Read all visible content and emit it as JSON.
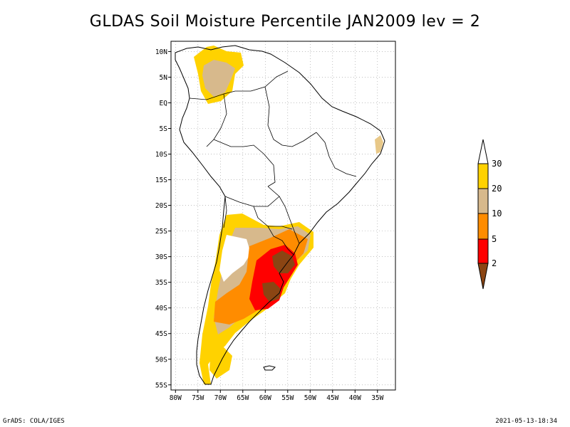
{
  "title": "GLDAS Soil Moisture Percentile JAN2009 lev = 2",
  "map": {
    "region": "South America",
    "lon_range": [
      -80,
      -30
    ],
    "lat_range": [
      -55,
      10
    ],
    "lon_ticks": [
      "80W",
      "75W",
      "70W",
      "65W",
      "60W",
      "55W",
      "50W",
      "45W",
      "40W",
      "35W"
    ],
    "lat_ticks": [
      "10N",
      "5N",
      "EQ",
      "5S",
      "10S",
      "15S",
      "20S",
      "25S",
      "30S",
      "35S",
      "40S",
      "45S",
      "50S",
      "55S"
    ],
    "grid": "dotted"
  },
  "colorbar": {
    "labels": [
      "30",
      "20",
      "10",
      "5",
      "2"
    ],
    "colors": {
      "above_30": "#ffffff",
      "20_30": "#ffd200",
      "10_20": "#d7b98c",
      "5_10": "#ff8c00",
      "2_5": "#ff0000",
      "below_2": "#8b4513"
    }
  },
  "footer": {
    "left": "GrADS: COLA/IGES",
    "right": "2021-05-13-18:34"
  }
}
